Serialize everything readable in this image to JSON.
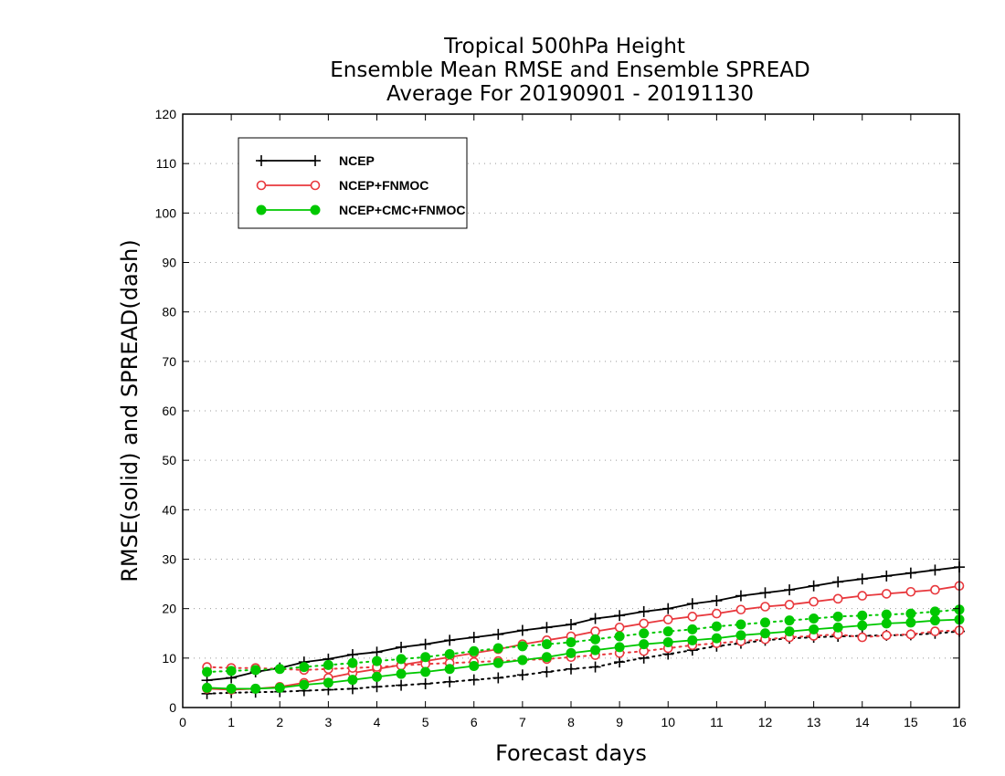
{
  "chart_data": {
    "type": "line",
    "title_lines": [
      "Tropical 500hPa Height",
      "Ensemble Mean RMSE and Ensemble SPREAD",
      "Average For 20190901 - 20191130"
    ],
    "xlabel": "Forecast days",
    "ylabel": "RMSE(solid) and SPREAD(dash)",
    "xlim": [
      0,
      16
    ],
    "ylim": [
      0,
      120
    ],
    "xticks": [
      0,
      1,
      2,
      3,
      4,
      5,
      6,
      7,
      8,
      9,
      10,
      11,
      12,
      13,
      14,
      15,
      16
    ],
    "yticks": [
      0,
      10,
      20,
      30,
      40,
      50,
      60,
      70,
      80,
      90,
      100,
      110,
      120
    ],
    "grid": "horizontal dotted",
    "legend_position": "top-left",
    "x": [
      0.5,
      1,
      1.5,
      2,
      2.5,
      3,
      3.5,
      4,
      4.5,
      5,
      5.5,
      6,
      6.5,
      7,
      7.5,
      8,
      8.5,
      9,
      9.5,
      10,
      10.5,
      11,
      11.5,
      12,
      12.5,
      13,
      13.5,
      14,
      14.5,
      15,
      15.5,
      16
    ],
    "series": [
      {
        "name": "NCEP",
        "color": "#000000",
        "marker": "plus",
        "rmse": [
          5.5,
          6.0,
          7.2,
          8.0,
          9.2,
          9.8,
          10.7,
          11.2,
          12.2,
          12.8,
          13.6,
          14.2,
          14.8,
          15.6,
          16.2,
          16.8,
          18.0,
          18.6,
          19.4,
          20.0,
          21.0,
          21.6,
          22.6,
          23.2,
          23.8,
          24.6,
          25.4,
          26.0,
          26.6,
          27.2,
          27.8,
          28.4
        ],
        "spread": [
          2.8,
          3.0,
          3.1,
          3.2,
          3.4,
          3.6,
          3.8,
          4.2,
          4.5,
          4.8,
          5.2,
          5.6,
          6.0,
          6.6,
          7.2,
          7.8,
          8.2,
          9.2,
          10.0,
          10.8,
          11.6,
          12.4,
          13.0,
          13.6,
          14.0,
          14.2,
          14.4,
          14.5,
          14.6,
          14.7,
          15.0,
          15.4
        ]
      },
      {
        "name": "NCEP+FNMOC",
        "color": "#e8383d",
        "marker": "open-circle",
        "rmse": [
          3.8,
          3.6,
          3.8,
          4.2,
          5.0,
          6.0,
          7.0,
          7.8,
          8.6,
          9.4,
          10.2,
          11.0,
          11.8,
          12.8,
          13.6,
          14.4,
          15.4,
          16.2,
          17.0,
          17.8,
          18.4,
          19.0,
          19.8,
          20.4,
          20.8,
          21.4,
          22.0,
          22.6,
          23.0,
          23.4,
          23.8,
          24.6
        ],
        "spread": [
          8.2,
          8.0,
          8.0,
          7.8,
          7.6,
          7.8,
          8.0,
          8.2,
          8.5,
          8.8,
          9.0,
          9.2,
          9.4,
          9.6,
          9.8,
          10.2,
          10.6,
          11.0,
          11.4,
          12.0,
          12.6,
          13.0,
          13.4,
          13.8,
          14.2,
          14.5,
          14.8,
          14.2,
          14.6,
          14.8,
          15.4,
          15.6
        ]
      },
      {
        "name": "NCEP+CMC+FNMOC",
        "color": "#00c800",
        "marker": "filled-circle",
        "rmse": [
          4.0,
          3.8,
          3.8,
          4.0,
          4.6,
          5.0,
          5.6,
          6.2,
          6.8,
          7.2,
          7.8,
          8.4,
          9.0,
          9.6,
          10.2,
          11.0,
          11.6,
          12.2,
          12.8,
          13.2,
          13.6,
          14.0,
          14.6,
          15.0,
          15.4,
          15.8,
          16.2,
          16.6,
          17.0,
          17.2,
          17.6,
          17.8
        ],
        "spread": [
          7.2,
          7.4,
          7.6,
          7.8,
          8.2,
          8.6,
          9.0,
          9.4,
          9.8,
          10.2,
          10.8,
          11.4,
          12.0,
          12.4,
          12.8,
          13.2,
          13.8,
          14.4,
          15.0,
          15.4,
          15.8,
          16.4,
          16.8,
          17.2,
          17.6,
          18.0,
          18.4,
          18.6,
          18.8,
          19.0,
          19.4,
          19.8
        ]
      }
    ]
  }
}
